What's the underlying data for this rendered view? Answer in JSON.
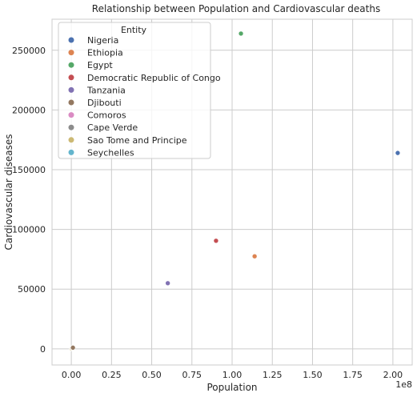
{
  "chart_data": {
    "type": "scatter",
    "title": "Relationship between Population and Cardiovascular deaths",
    "xlabel": "Population",
    "ylabel": "Cardiovascular diseases",
    "x_offset_label": "1e8",
    "xlim": [
      -12000000,
      212000000
    ],
    "ylim": [
      -13500.0,
      276000
    ],
    "xticks": [
      0,
      25000000,
      50000000,
      75000000,
      100000000,
      125000000,
      150000000,
      175000000,
      200000000
    ],
    "xtick_labels": [
      "0.00",
      "0.25",
      "0.50",
      "0.75",
      "1.00",
      "1.25",
      "1.50",
      "1.75",
      "2.00"
    ],
    "yticks": [
      0,
      50000,
      100000,
      150000,
      200000,
      250000
    ],
    "ytick_labels": [
      "0",
      "50000",
      "100000",
      "150000",
      "200000",
      "250000"
    ],
    "grid": true,
    "legend": {
      "title": "Entity",
      "placement": "top-left"
    },
    "series": [
      {
        "name": "Nigeria",
        "color": "#4c72b0",
        "x": [
          203000000
        ],
        "y": [
          164000
        ]
      },
      {
        "name": "Ethiopia",
        "color": "#dd8452",
        "x": [
          114000000
        ],
        "y": [
          77500
        ]
      },
      {
        "name": "Egypt",
        "color": "#55a868",
        "x": [
          105500000
        ],
        "y": [
          264000
        ]
      },
      {
        "name": "Democratic Republic of Congo",
        "color": "#c44e52",
        "x": [
          90000000
        ],
        "y": [
          90500
        ]
      },
      {
        "name": "Tanzania",
        "color": "#8172b3",
        "x": [
          60000000
        ],
        "y": [
          55000
        ]
      },
      {
        "name": "Djibouti",
        "color": "#937860",
        "x": [
          1000000
        ],
        "y": [
          1000
        ]
      },
      {
        "name": "Comoros",
        "color": "#da8bc3",
        "x": [
          900000
        ],
        "y": [
          800
        ]
      },
      {
        "name": "Cape Verde",
        "color": "#8c8c8c",
        "x": [
          600000
        ],
        "y": [
          700
        ]
      },
      {
        "name": "Sao Tome and Principe",
        "color": "#ccb974",
        "x": [
          220000
        ],
        "y": [
          300
        ]
      },
      {
        "name": "Seychelles",
        "color": "#64b5cd",
        "x": [
          100000
        ],
        "y": [
          200
        ]
      }
    ]
  }
}
